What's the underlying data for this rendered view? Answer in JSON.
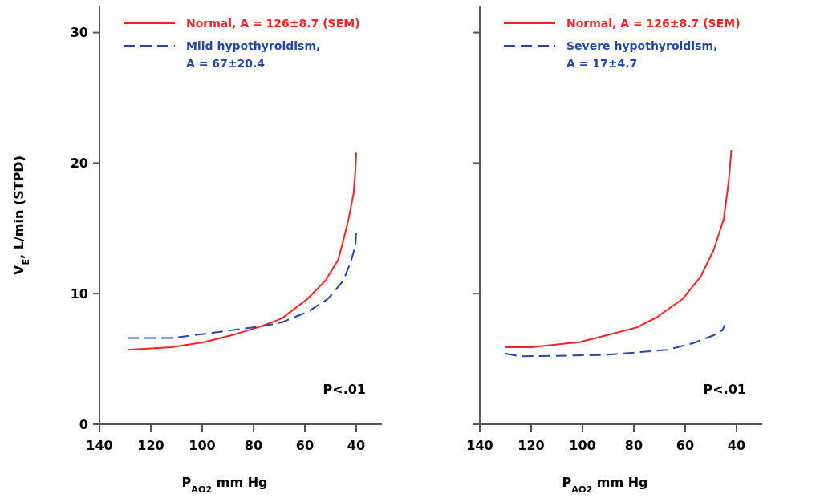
{
  "chart_data": [
    {
      "type": "line",
      "xlabel": "P$_{AO2}$ mm Hg",
      "ylabel": "V$_{E}$, L/min (STPD)",
      "xlim": [
        140,
        30
      ],
      "ylim": [
        0,
        32
      ],
      "xticks": [
        140,
        120,
        100,
        80,
        60,
        40
      ],
      "yticks": [
        0,
        10,
        20,
        30
      ],
      "legend": "top right",
      "annotations": [
        "P<.01"
      ],
      "series": [
        {
          "name": "Normal, A = 126±8.7 (SEM)",
          "color": "#ff2020",
          "line_style": "solid",
          "x": [
            129,
            112,
            99,
            87,
            77,
            69,
            59,
            52,
            47,
            45,
            43,
            41,
            40.3,
            40
          ],
          "values": [
            5.7,
            5.9,
            6.3,
            6.9,
            7.5,
            8.1,
            9.6,
            11.0,
            12.6,
            14.1,
            15.7,
            17.7,
            19.5,
            20.8
          ]
        },
        {
          "name": "Mild hypothyroidism, A = 67±20.4",
          "color": "#2448a8",
          "line_style": "dashed",
          "x": [
            129,
            112,
            96,
            77,
            69,
            59,
            51,
            45,
            42,
            40.3,
            40
          ],
          "values": [
            6.6,
            6.6,
            7.0,
            7.5,
            7.8,
            8.6,
            9.6,
            11.0,
            12.5,
            13.7,
            14.9
          ]
        }
      ]
    },
    {
      "type": "line",
      "xlabel": "P$_{AO2}$ mm Hg",
      "xlim": [
        140,
        30
      ],
      "ylim": [
        0,
        32
      ],
      "xticks": [
        140,
        120,
        100,
        80,
        60,
        40
      ],
      "yticks": [
        0,
        10,
        20,
        30
      ],
      "tick_labels": "x",
      "legend": "top right",
      "annotations": [
        "P<.01"
      ],
      "series": [
        {
          "name": "Normal, A = 126±8.7 (SEM)",
          "color": "#ff2020",
          "line_style": "solid",
          "x": [
            130,
            120,
            101,
            79,
            71,
            61,
            54,
            49,
            45,
            43,
            42
          ],
          "values": [
            5.9,
            5.9,
            6.3,
            7.4,
            8.2,
            9.6,
            11.3,
            13.3,
            15.7,
            18.7,
            21.0
          ]
        },
        {
          "name": "Severe hypothyroidism, A = 17±4.7",
          "color": "#2448a8",
          "line_style": "dashed",
          "x": [
            130,
            124,
            92,
            79,
            67,
            57,
            49,
            45.5,
            44.5
          ],
          "values": [
            5.4,
            5.2,
            5.3,
            5.5,
            5.7,
            6.2,
            6.8,
            7.2,
            7.6
          ]
        }
      ]
    }
  ]
}
